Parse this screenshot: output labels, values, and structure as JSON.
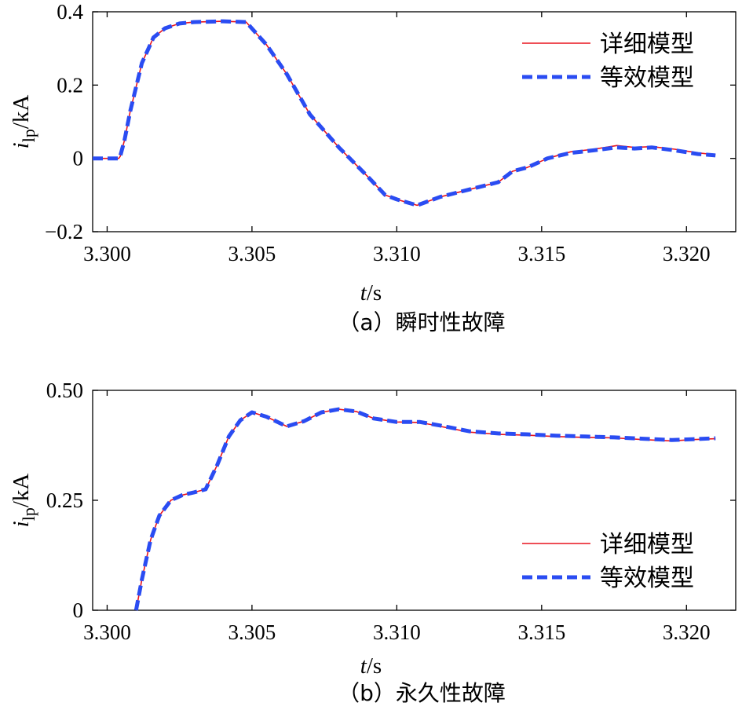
{
  "chart_data": [
    {
      "type": "line",
      "xlabel_var": "t",
      "xlabel_unit": "/s",
      "ylabel_var": "i",
      "ylabel_sub": "lp",
      "ylabel_unit": "/kA",
      "caption": "（a）瞬时性故障",
      "xlim": [
        3.2995,
        3.3217
      ],
      "ylim": [
        -0.2,
        0.4
      ],
      "xticks": [
        3.3,
        3.305,
        3.31,
        3.315,
        3.32
      ],
      "xtick_labels": [
        "3.300",
        "3.305",
        "3.310",
        "3.315",
        "3.320"
      ],
      "yticks": [
        -0.2,
        0,
        0.2,
        0.4
      ],
      "ytick_labels": [
        "−0.2",
        "0",
        "0.2",
        "0.4"
      ],
      "legend_position": "top-right",
      "series": [
        {
          "name": "详细模型",
          "color": "#e8141e",
          "style": "solid",
          "x": [
            3.2995,
            3.3004,
            3.30045,
            3.3006,
            3.3008,
            3.3012,
            3.3016,
            3.302,
            3.3025,
            3.303,
            3.304,
            3.3048,
            3.3055,
            3.3062,
            3.307,
            3.308,
            3.309,
            3.3096,
            3.31,
            3.3107,
            3.3115,
            3.3125,
            3.3135,
            3.314,
            3.3145,
            3.3152,
            3.316,
            3.3168,
            3.3176,
            3.3182,
            3.3188,
            3.3196,
            3.3204,
            3.321
          ],
          "y": [
            0.0,
            0.0,
            0.005,
            0.05,
            0.13,
            0.26,
            0.33,
            0.355,
            0.368,
            0.372,
            0.374,
            0.372,
            0.31,
            0.23,
            0.12,
            0.03,
            -0.05,
            -0.1,
            -0.112,
            -0.128,
            -0.105,
            -0.085,
            -0.065,
            -0.035,
            -0.025,
            0.0,
            0.018,
            0.025,
            0.035,
            0.03,
            0.032,
            0.025,
            0.015,
            0.01
          ]
        },
        {
          "name": "等效模型",
          "color": "#2a4cf2",
          "style": "dashed",
          "x": [
            3.2995,
            3.3004,
            3.30045,
            3.3006,
            3.3008,
            3.3012,
            3.3016,
            3.302,
            3.3025,
            3.303,
            3.304,
            3.3048,
            3.3055,
            3.3062,
            3.307,
            3.308,
            3.309,
            3.3096,
            3.31,
            3.3107,
            3.3115,
            3.3125,
            3.3135,
            3.314,
            3.3145,
            3.3152,
            3.316,
            3.3168,
            3.3176,
            3.3182,
            3.3188,
            3.3196,
            3.3204,
            3.321
          ],
          "y": [
            0.0,
            0.0,
            0.005,
            0.05,
            0.13,
            0.26,
            0.33,
            0.355,
            0.368,
            0.372,
            0.374,
            0.372,
            0.31,
            0.23,
            0.12,
            0.03,
            -0.05,
            -0.1,
            -0.112,
            -0.128,
            -0.105,
            -0.085,
            -0.065,
            -0.035,
            -0.025,
            0.0,
            0.015,
            0.022,
            0.03,
            0.027,
            0.03,
            0.022,
            0.012,
            0.008
          ]
        }
      ]
    },
    {
      "type": "line",
      "xlabel_var": "t",
      "xlabel_unit": "/s",
      "ylabel_var": "i",
      "ylabel_sub": "lp",
      "ylabel_unit": "/kA",
      "caption": "（b）永久性故障",
      "xlim": [
        3.2995,
        3.3217
      ],
      "ylim": [
        0,
        0.5
      ],
      "xticks": [
        3.3,
        3.305,
        3.31,
        3.315,
        3.32
      ],
      "xtick_labels": [
        "3.300",
        "3.305",
        "3.310",
        "3.315",
        "3.320"
      ],
      "yticks": [
        0,
        0.25,
        0.5
      ],
      "ytick_labels": [
        "0",
        "0.25",
        "0.50"
      ],
      "legend_position": "bottom-right",
      "series": [
        {
          "name": "详细模型",
          "color": "#e8141e",
          "style": "solid",
          "x": [
            3.301,
            3.3012,
            3.3015,
            3.3018,
            3.3022,
            3.3026,
            3.303,
            3.3034,
            3.3038,
            3.3042,
            3.3046,
            3.305,
            3.3055,
            3.3062,
            3.3068,
            3.3074,
            3.308,
            3.3086,
            3.3092,
            3.31,
            3.3108,
            3.3115,
            3.3125,
            3.3135,
            3.3145,
            3.3155,
            3.3165,
            3.3175,
            3.3185,
            3.3195,
            3.3202,
            3.321
          ],
          "y": [
            0.0,
            0.07,
            0.16,
            0.215,
            0.25,
            0.262,
            0.268,
            0.275,
            0.33,
            0.395,
            0.432,
            0.45,
            0.44,
            0.418,
            0.43,
            0.45,
            0.457,
            0.452,
            0.436,
            0.428,
            0.427,
            0.418,
            0.405,
            0.4,
            0.398,
            0.395,
            0.393,
            0.392,
            0.388,
            0.385,
            0.388,
            0.39
          ]
        },
        {
          "name": "等效模型",
          "color": "#2a4cf2",
          "style": "dashed",
          "x": [
            3.301,
            3.3012,
            3.3015,
            3.3018,
            3.3022,
            3.3026,
            3.303,
            3.3034,
            3.3038,
            3.3042,
            3.3046,
            3.305,
            3.3055,
            3.3062,
            3.3068,
            3.3074,
            3.308,
            3.3086,
            3.3092,
            3.31,
            3.3108,
            3.3115,
            3.3125,
            3.3135,
            3.3145,
            3.3155,
            3.3165,
            3.3175,
            3.3185,
            3.3195,
            3.3202,
            3.321
          ],
          "y": [
            0.0,
            0.07,
            0.16,
            0.215,
            0.25,
            0.262,
            0.268,
            0.275,
            0.33,
            0.395,
            0.432,
            0.45,
            0.44,
            0.418,
            0.43,
            0.45,
            0.457,
            0.452,
            0.436,
            0.428,
            0.428,
            0.42,
            0.407,
            0.402,
            0.4,
            0.397,
            0.395,
            0.393,
            0.39,
            0.387,
            0.389,
            0.391
          ]
        }
      ]
    }
  ]
}
